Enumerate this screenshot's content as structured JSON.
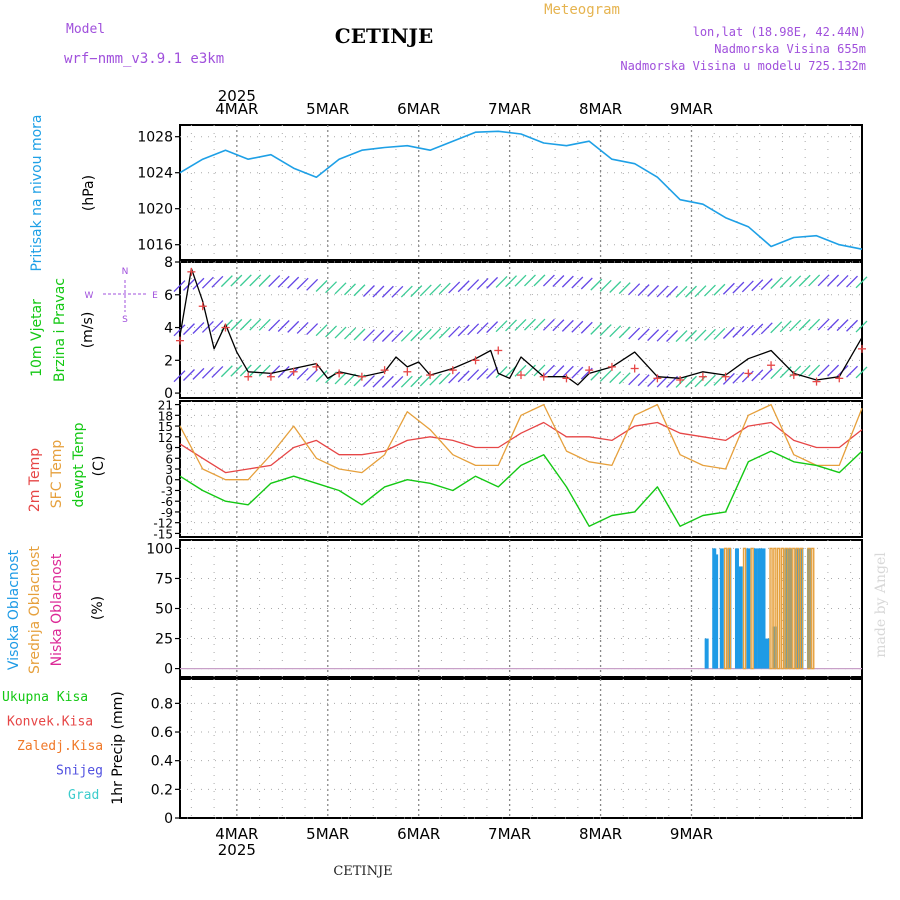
{
  "header": {
    "model_label": "Model",
    "model_name": "wrf−nmm_v3.9.1  e3km",
    "station": "CETINJE",
    "meteogram": "Meteogram",
    "lonlat": "lon,lat (18.98E, 42.44N)",
    "alt": "Nadmorska Visina 655m",
    "alt_model": "Nadmorska Visina u modelu 725.132m",
    "footer_station": "CETINJE",
    "credit": "made by Angel"
  },
  "colors": {
    "pressure": "#1ea0e6",
    "wind_black": "#000000",
    "red": "#e64646",
    "orange": "#e6a03c",
    "green": "#14c814",
    "blue": "#1e9be6",
    "magenta": "#dc2896",
    "purple": "#a050dc"
  },
  "chart_data": [
    {
      "type": "line",
      "id": "pressure",
      "ylabel": [
        "Pritisak na nivou mora",
        "(hPa)"
      ],
      "yticks": [
        1016,
        1020,
        1024,
        1028
      ],
      "ylim": [
        1014.3,
        1029.3
      ],
      "x_dates": [
        "2025",
        "4MAR",
        "5MAR",
        "6MAR",
        "7MAR",
        "8MAR",
        "9MAR"
      ],
      "x": [
        0,
        6,
        12,
        18,
        24,
        30,
        36,
        42,
        48,
        54,
        60,
        66,
        72,
        78,
        84,
        90,
        96,
        102,
        108,
        114,
        120,
        126,
        132,
        138,
        144,
        150,
        156,
        162,
        168,
        174,
        180
      ],
      "values": [
        1024,
        1025.5,
        1026.5,
        1025.5,
        1026,
        1024.5,
        1023.5,
        1025.5,
        1026.5,
        1026.8,
        1027,
        1026.5,
        1027.5,
        1028.5,
        1028.6,
        1028.3,
        1027.3,
        1027,
        1027.5,
        1025.5,
        1025,
        1023.5,
        1021,
        1020.5,
        1019,
        1018,
        1015.8,
        1016.8,
        1017,
        1016,
        1015.5
      ]
    },
    {
      "type": "line",
      "id": "wind",
      "ylabel": [
        "10m Vjetar",
        "Brzina i Pravac",
        "(m/s)"
      ],
      "compass": [
        "N",
        "W",
        "E",
        "S"
      ],
      "yticks": [
        0,
        2,
        4,
        6,
        8
      ],
      "ylim": [
        -0.3,
        8
      ],
      "series": [
        {
          "name": "speed",
          "x": [
            0,
            3,
            6,
            9,
            12,
            15,
            18,
            24,
            30,
            36,
            39,
            42,
            48,
            54,
            57,
            60,
            63,
            66,
            72,
            78,
            82,
            84,
            87,
            90,
            96,
            102,
            105,
            108,
            114,
            120,
            126,
            132,
            138,
            144,
            150,
            156,
            162,
            168,
            174,
            180
          ],
          "values": [
            3.5,
            7.6,
            5.6,
            2.7,
            4.2,
            2.5,
            1.3,
            1.2,
            1.5,
            1.8,
            0.9,
            1.3,
            1.0,
            1.3,
            2.2,
            1.6,
            1.9,
            1.1,
            1.5,
            2.1,
            2.6,
            1.2,
            0.9,
            2.2,
            1.0,
            1.0,
            0.5,
            1.2,
            1.6,
            2.5,
            1.0,
            0.9,
            1.3,
            1.1,
            2.1,
            2.6,
            1.2,
            0.8,
            1.0,
            3.4
          ]
        },
        {
          "name": "gust",
          "x": [
            0,
            3,
            6,
            12,
            18,
            24,
            30,
            36,
            42,
            48,
            54,
            60,
            66,
            72,
            78,
            84,
            90,
            96,
            102,
            108,
            114,
            120,
            126,
            132,
            138,
            144,
            150,
            156,
            162,
            168,
            174,
            180
          ],
          "values": [
            3.2,
            7.4,
            5.3,
            4.0,
            1.0,
            1.0,
            1.3,
            1.6,
            1.2,
            1.0,
            1.4,
            1.3,
            1.1,
            1.4,
            2.0,
            2.6,
            1.1,
            1.0,
            0.9,
            1.4,
            1.6,
            1.5,
            0.9,
            0.8,
            1.0,
            1.0,
            1.2,
            1.7,
            1.1,
            0.7,
            0.9,
            2.7
          ]
        }
      ]
    },
    {
      "type": "line",
      "id": "temperature",
      "ylabel": [
        "2m Temp",
        "SFC Temp",
        "dewpt Temp",
        "(C)"
      ],
      "yticks": [
        -15,
        -12,
        -9,
        -6,
        -3,
        0,
        3,
        6,
        9,
        12,
        15,
        18,
        21
      ],
      "ylim": [
        -16,
        22
      ],
      "series": [
        {
          "name": "2m Temp",
          "x": [
            0,
            6,
            12,
            18,
            24,
            30,
            36,
            42,
            48,
            54,
            60,
            66,
            72,
            78,
            84,
            90,
            96,
            102,
            108,
            114,
            120,
            126,
            132,
            138,
            144,
            150,
            156,
            162,
            168,
            174,
            180
          ],
          "values": [
            10,
            6,
            2,
            3,
            4,
            9,
            11,
            7,
            7,
            8,
            11,
            12,
            11,
            9,
            9,
            13,
            16,
            12,
            12,
            11,
            15,
            16,
            13,
            12,
            11,
            15,
            16,
            11,
            9,
            9,
            14
          ]
        },
        {
          "name": "SFC Temp",
          "x": [
            0,
            6,
            12,
            18,
            24,
            30,
            36,
            42,
            48,
            54,
            60,
            66,
            72,
            78,
            84,
            90,
            96,
            102,
            108,
            114,
            120,
            126,
            132,
            138,
            144,
            150,
            156,
            162,
            168,
            174,
            180
          ],
          "values": [
            15,
            3,
            0,
            0,
            7,
            15,
            6,
            3,
            2,
            7,
            19,
            14,
            7,
            4,
            4,
            18,
            21,
            8,
            5,
            4,
            18,
            21,
            7,
            4,
            3,
            18,
            21,
            7,
            4,
            4,
            20
          ]
        },
        {
          "name": "dewpt Temp",
          "x": [
            0,
            6,
            12,
            18,
            24,
            30,
            36,
            42,
            48,
            54,
            60,
            66,
            72,
            78,
            84,
            90,
            96,
            102,
            108,
            114,
            120,
            126,
            132,
            138,
            144,
            150,
            156,
            162,
            168,
            174,
            180
          ],
          "values": [
            1,
            -3,
            -6,
            -7,
            -1,
            1,
            -1,
            -3,
            -7,
            -2,
            0,
            -1,
            -3,
            1,
            -2,
            4,
            7,
            -2,
            -13,
            -10,
            -9,
            -2,
            -13,
            -10,
            -9,
            5,
            8,
            5,
            4,
            2,
            8
          ]
        }
      ]
    },
    {
      "type": "bar",
      "id": "clouds",
      "ylabel": [
        "Visoka Oblacnost",
        "Srednja Oblacnost",
        "Niska Oblacnost",
        "(%)"
      ],
      "yticks": [
        0,
        25,
        50,
        75,
        100
      ],
      "ylim": [
        -7,
        107
      ],
      "series": [
        {
          "name": "Visoka",
          "x": [
            139,
            141,
            141.5,
            143,
            145,
            147,
            148,
            150,
            152,
            153,
            154,
            155,
            157,
            160,
            161,
            163,
            164,
            166
          ],
          "values": [
            25,
            100,
            95,
            100,
            100,
            100,
            85,
            100,
            100,
            100,
            100,
            25,
            35,
            100,
            100,
            100,
            100,
            100
          ]
        },
        {
          "name": "Srednja",
          "x": [
            144,
            145,
            149,
            151,
            156,
            157,
            158,
            159,
            160,
            161,
            162,
            163,
            164,
            166,
            167
          ],
          "values": [
            100,
            100,
            100,
            100,
            100,
            100,
            100,
            100,
            100,
            100,
            100,
            100,
            100,
            100,
            100
          ]
        }
      ]
    },
    {
      "type": "bar",
      "id": "precip",
      "ylabel": [
        "1hr Precip (mm)"
      ],
      "legend": [
        "Ukupna Kisa",
        "Konvek.Kisa",
        "Zaledj.Kisa",
        "Snijeg",
        "Grad"
      ],
      "yticks": [
        0,
        0.2,
        0.4,
        0.6,
        0.8
      ],
      "ylim": [
        0,
        0.97
      ],
      "values": []
    }
  ]
}
